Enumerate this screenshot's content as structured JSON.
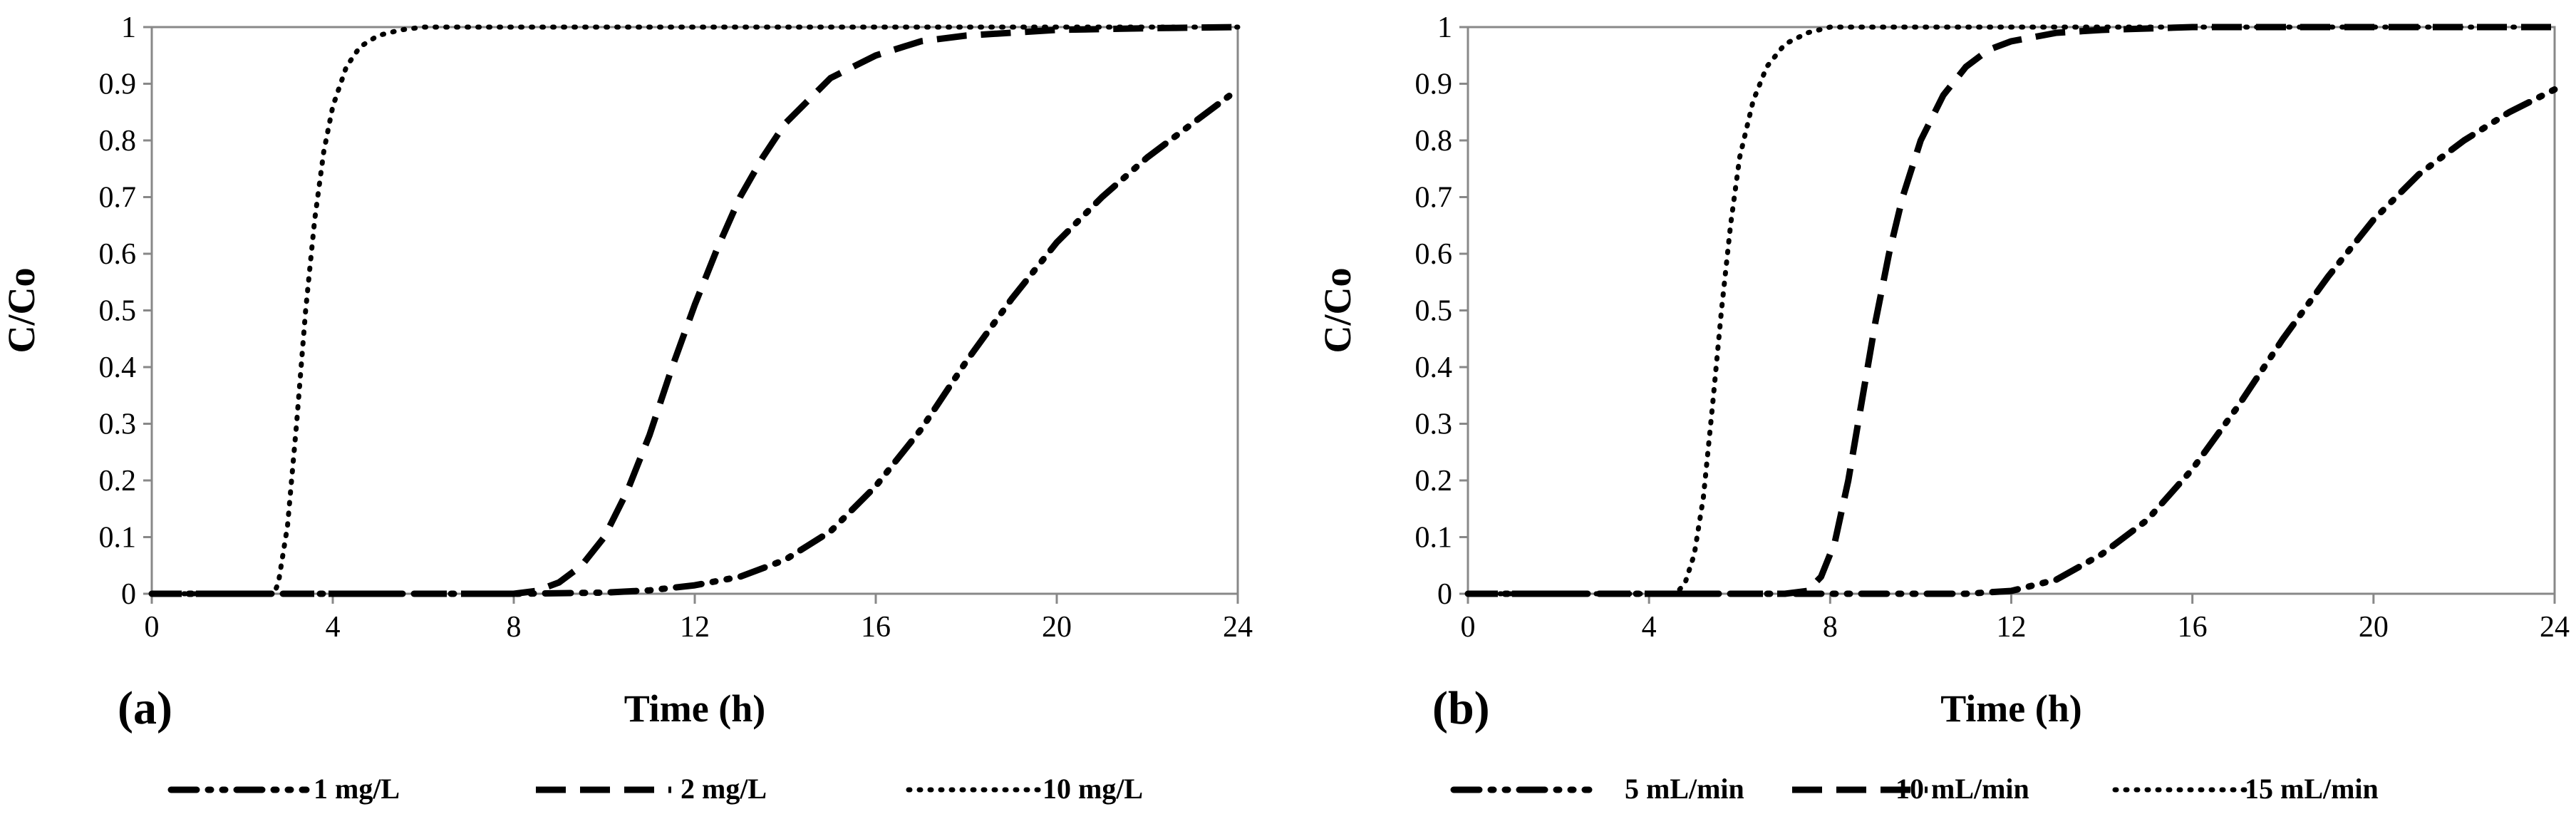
{
  "chart_data": [
    {
      "type": "line",
      "panel_label": "(a)",
      "xlabel": "Time (h)",
      "ylabel": "C/Co",
      "xlim": [
        0,
        24
      ],
      "ylim": [
        0,
        1
      ],
      "xticks": [
        0,
        4,
        8,
        12,
        16,
        20,
        24
      ],
      "yticks": [
        0,
        0.1,
        0.2,
        0.3,
        0.4,
        0.5,
        0.6,
        0.7,
        0.8,
        0.9,
        1
      ],
      "xtick_labels": [
        "0",
        "4",
        "8",
        "12",
        "16",
        "20",
        "24"
      ],
      "ytick_labels": [
        "0",
        "0.1",
        "0.2",
        "0.3",
        "0.4",
        "0.5",
        "0.6",
        "0.7",
        "0.8",
        "0.9",
        "1"
      ],
      "grid": false,
      "legend_position": "bottom",
      "series": [
        {
          "name": "1 mg/L",
          "style": "dash-dot-dot",
          "x": [
            0,
            8,
            10,
            11,
            12,
            13,
            14,
            15,
            16,
            17,
            18,
            19,
            20,
            21,
            22,
            23,
            24
          ],
          "y": [
            0,
            0,
            0.002,
            0.006,
            0.015,
            0.03,
            0.06,
            0.11,
            0.19,
            0.29,
            0.41,
            0.52,
            0.62,
            0.7,
            0.77,
            0.83,
            0.89
          ]
        },
        {
          "name": "2 mg/L",
          "style": "dash",
          "x": [
            0,
            8,
            8.5,
            9,
            9.5,
            10,
            10.5,
            11,
            11.5,
            12,
            12.5,
            13,
            13.5,
            14,
            15,
            16,
            17,
            18,
            20,
            22,
            24
          ],
          "y": [
            0,
            0,
            0.005,
            0.02,
            0.05,
            0.1,
            0.18,
            0.28,
            0.4,
            0.51,
            0.61,
            0.7,
            0.77,
            0.83,
            0.91,
            0.95,
            0.975,
            0.985,
            0.995,
            0.998,
            1
          ]
        },
        {
          "name": "10 mg/L",
          "style": "dot",
          "x": [
            0,
            2.7,
            2.8,
            3,
            3.2,
            3.4,
            3.6,
            3.8,
            4,
            4.3,
            4.6,
            5,
            5.5,
            6,
            8,
            12,
            16,
            20,
            24
          ],
          "y": [
            0,
            0,
            0.02,
            0.12,
            0.3,
            0.5,
            0.66,
            0.78,
            0.86,
            0.93,
            0.965,
            0.985,
            0.995,
            1,
            1,
            1,
            1,
            1,
            1
          ]
        }
      ]
    },
    {
      "type": "line",
      "panel_label": "(b)",
      "xlabel": "Time (h)",
      "ylabel": "C/Co",
      "xlim": [
        0,
        24
      ],
      "ylim": [
        0,
        1
      ],
      "xticks": [
        0,
        4,
        8,
        12,
        16,
        20,
        24
      ],
      "yticks": [
        0,
        0.1,
        0.2,
        0.3,
        0.4,
        0.5,
        0.6,
        0.7,
        0.8,
        0.9,
        1
      ],
      "xtick_labels": [
        "0",
        "4",
        "8",
        "12",
        "16",
        "20",
        "24"
      ],
      "ytick_labels": [
        "0",
        "0.1",
        "0.2",
        "0.3",
        "0.4",
        "0.5",
        "0.6",
        "0.7",
        "0.8",
        "0.9",
        "1"
      ],
      "grid": false,
      "legend_position": "bottom",
      "series": [
        {
          "name": "5 mL/min",
          "style": "dash-dot-dot",
          "x": [
            0,
            11,
            12,
            13,
            14,
            15,
            16,
            17,
            18,
            19,
            20,
            21,
            22,
            23,
            24
          ],
          "y": [
            0,
            0,
            0.005,
            0.025,
            0.07,
            0.13,
            0.22,
            0.33,
            0.45,
            0.56,
            0.66,
            0.74,
            0.8,
            0.85,
            0.89
          ]
        },
        {
          "name": "10 mL/min",
          "style": "dash",
          "x": [
            0,
            7,
            7.5,
            7.8,
            8.1,
            8.4,
            8.7,
            9,
            9.3,
            9.6,
            10,
            10.5,
            11,
            11.5,
            12,
            13,
            14,
            16,
            20,
            24
          ],
          "y": [
            0,
            0,
            0.005,
            0.03,
            0.09,
            0.2,
            0.34,
            0.48,
            0.6,
            0.7,
            0.8,
            0.88,
            0.93,
            0.96,
            0.975,
            0.99,
            0.995,
            1,
            1,
            1
          ]
        },
        {
          "name": "15 mL/min",
          "style": "dot",
          "x": [
            0,
            4.6,
            4.8,
            5,
            5.2,
            5.4,
            5.6,
            5.8,
            6,
            6.3,
            6.6,
            7,
            7.5,
            8,
            9,
            12,
            16,
            20,
            24
          ],
          "y": [
            0,
            0,
            0.02,
            0.07,
            0.17,
            0.33,
            0.5,
            0.65,
            0.77,
            0.87,
            0.93,
            0.97,
            0.99,
            1,
            1,
            1,
            1,
            1,
            1
          ]
        }
      ]
    }
  ]
}
